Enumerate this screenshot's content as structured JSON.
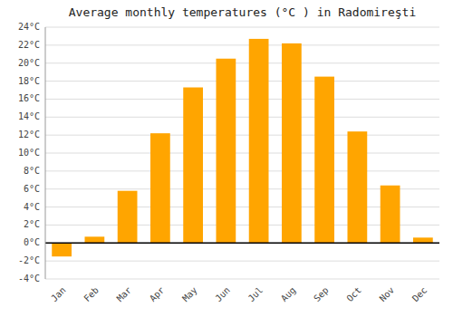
{
  "chart_data": {
    "type": "bar",
    "title": "Average monthly temperatures (°C ) in Radomireşti",
    "categories": [
      "Jan",
      "Feb",
      "Mar",
      "Apr",
      "May",
      "Jun",
      "Jul",
      "Aug",
      "Sep",
      "Oct",
      "Nov",
      "Dec"
    ],
    "values": [
      -1.5,
      0.7,
      5.8,
      12.2,
      17.3,
      20.5,
      22.7,
      22.2,
      18.5,
      12.4,
      6.4,
      0.6
    ],
    "color": "#FFA500",
    "ylim": [
      -4,
      24
    ],
    "yticks": [
      {
        "value": -4,
        "label": "-4°C"
      },
      {
        "value": -2,
        "label": "-2°C"
      },
      {
        "value": 0,
        "label": "0°C"
      },
      {
        "value": 2,
        "label": "2°C"
      },
      {
        "value": 4,
        "label": "4°C"
      },
      {
        "value": 6,
        "label": "6°C"
      },
      {
        "value": 8,
        "label": "8°C"
      },
      {
        "value": 10,
        "label": "10°C"
      },
      {
        "value": 12,
        "label": "12°C"
      },
      {
        "value": 14,
        "label": "14°C"
      },
      {
        "value": 16,
        "label": "16°C"
      },
      {
        "value": 18,
        "label": "18°C"
      },
      {
        "value": 20,
        "label": "20°C"
      },
      {
        "value": 22,
        "label": "22°C"
      },
      {
        "value": 24,
        "label": "24°C"
      }
    ],
    "grid": true
  }
}
